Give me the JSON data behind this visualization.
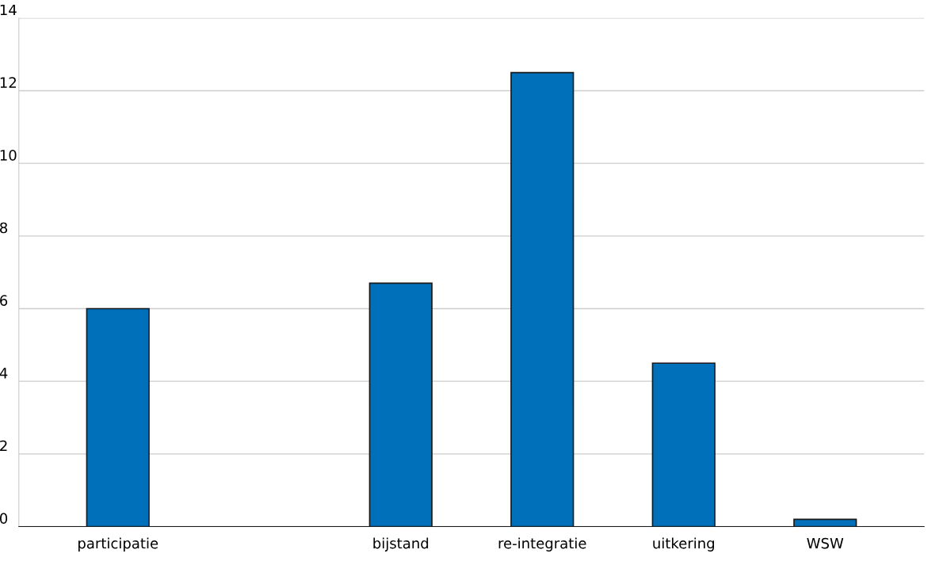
{
  "chart_data": {
    "type": "bar",
    "categories": [
      "participatie",
      null,
      "bijstand",
      "re-integratie",
      "uitkering",
      "WSW"
    ],
    "values": [
      6.0,
      null,
      6.7,
      12.5,
      4.5,
      0.2
    ],
    "color": "#0070ba",
    "ylim": [
      0,
      14
    ],
    "yticks": [
      0,
      2,
      4,
      6,
      8,
      10,
      12,
      14
    ],
    "grid": "y"
  }
}
